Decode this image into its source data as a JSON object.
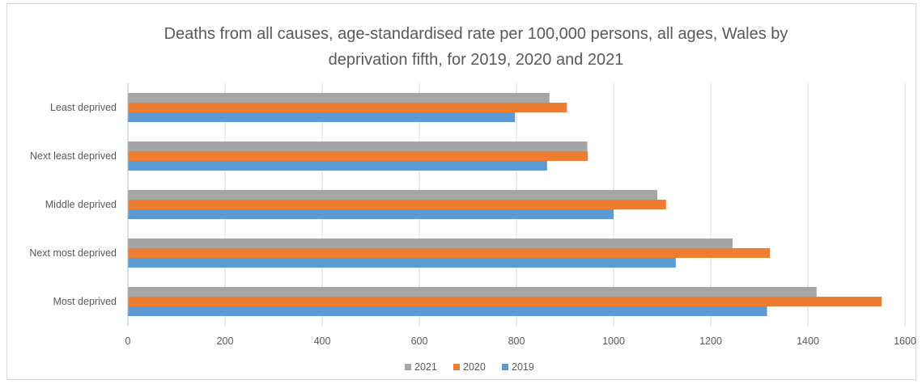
{
  "chart_data": {
    "type": "bar",
    "orientation": "horizontal",
    "title": "Deaths from all causes, age-standardised rate per 100,000 persons, all ages, Wales by deprivation fifth, for 2019, 2020 and 2021",
    "title_lines": [
      "Deaths from all causes, age-standardised rate per 100,000 persons, all ages, Wales by",
      "deprivation fifth, for 2019, 2020 and 2021"
    ],
    "categories": [
      "Least deprived",
      "Next least deprived",
      "Middle deprived",
      "Next most deprived",
      "Most deprived"
    ],
    "series": [
      {
        "name": "2021",
        "color": "#a5a5a5",
        "values": [
          868,
          946,
          1090,
          1245,
          1418
        ]
      },
      {
        "name": "2020",
        "color": "#ed7d31",
        "values": [
          904,
          947,
          1108,
          1322,
          1552
        ]
      },
      {
        "name": "2019",
        "color": "#5b9bd5",
        "values": [
          797,
          863,
          1000,
          1128,
          1316
        ]
      }
    ],
    "xlim": [
      0,
      1600
    ],
    "xticks": [
      "0",
      "200",
      "400",
      "600",
      "800",
      "1000",
      "1200",
      "1400",
      "1600"
    ],
    "xlabel": "",
    "ylabel": "",
    "grid": true,
    "legend_position": "bottom"
  }
}
